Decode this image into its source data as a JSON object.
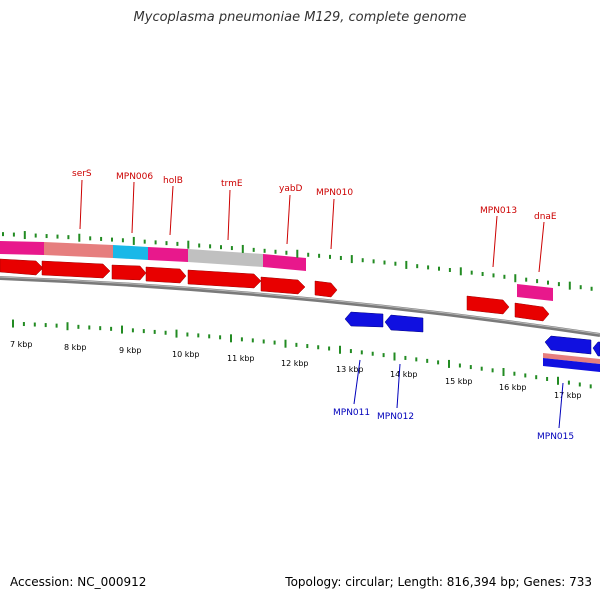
{
  "title": "Mycoplasma pneumoniae M129, complete genome",
  "footer": {
    "accession": "Accession: NC_000912",
    "topology": "Topology: circular; Length: 816,394 bp; Genes: 733"
  },
  "colors": {
    "forward_gene": "#e80000",
    "reverse_gene": "#1010e0",
    "backbone": "#808080",
    "tick": "#228b22",
    "pink": "#e8188c",
    "salmon": "#e67e7e",
    "cyan": "#19b8e8",
    "gray": "#c0c0c0"
  },
  "kbp_ticks": [
    "7 kbp",
    "8 kbp",
    "9 kbp",
    "10 kbp",
    "11 kbp",
    "12 kbp",
    "13 kbp",
    "14 kbp",
    "15 kbp",
    "16 kbp",
    "17 kbp"
  ],
  "forward_labels": [
    "serS",
    "MPN006",
    "holB",
    "trmE",
    "yabD",
    "MPN010",
    "MPN013",
    "dnaE"
  ],
  "reverse_labels": [
    "MPN011",
    "MPN012",
    "MPN015"
  ]
}
